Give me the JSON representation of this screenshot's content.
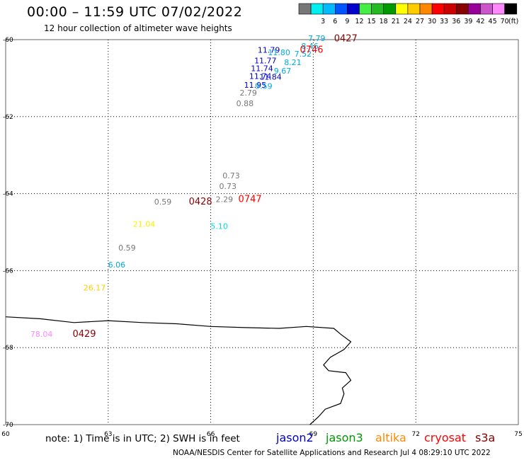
{
  "header": {
    "title": "00:00 – 11:59 UTC 07/02/2022",
    "subtitle": "12 hour collection of altimeter wave heights"
  },
  "color_scale": {
    "unit": "(ft)",
    "bins": [
      {
        "label": "",
        "color": "#777777"
      },
      {
        "label": "3",
        "color": "#00eeee"
      },
      {
        "label": "6",
        "color": "#00bbff"
      },
      {
        "label": "9",
        "color": "#0055ff"
      },
      {
        "label": "12",
        "color": "#0000cc"
      },
      {
        "label": "15",
        "color": "#44ee44"
      },
      {
        "label": "18",
        "color": "#22bb22"
      },
      {
        "label": "21",
        "color": "#009900"
      },
      {
        "label": "24",
        "color": "#ffff00"
      },
      {
        "label": "27",
        "color": "#ffcc00"
      },
      {
        "label": "30",
        "color": "#ff8800"
      },
      {
        "label": "33",
        "color": "#ff0000"
      },
      {
        "label": "36",
        "color": "#cc0000"
      },
      {
        "label": "39",
        "color": "#880000"
      },
      {
        "label": "42",
        "color": "#990099"
      },
      {
        "label": "45",
        "color": "#cc55cc"
      },
      {
        "label": "70",
        "color": "#ff88ff"
      },
      {
        "label": "",
        "color": "#000000"
      }
    ]
  },
  "map": {
    "lon_range": [
      60,
      75
    ],
    "lat_range": [
      -70,
      -60
    ],
    "lon_ticks": [
      {
        "value": 60,
        "label": "60"
      },
      {
        "value": 63,
        "label": "63"
      },
      {
        "value": 66,
        "label": "66"
      },
      {
        "value": 69,
        "label": "69"
      },
      {
        "value": 72,
        "label": "72"
      },
      {
        "value": 75,
        "label": "75"
      }
    ],
    "lat_ticks": [
      {
        "value": -60,
        "label": "-60"
      },
      {
        "value": -62,
        "label": "-62"
      },
      {
        "value": -64,
        "label": "-64"
      },
      {
        "value": -66,
        "label": "-66"
      },
      {
        "value": -68,
        "label": "-68"
      },
      {
        "value": -70,
        "label": "-70"
      }
    ],
    "grid": "dotted",
    "coastline": [
      [
        60,
        -67.2
      ],
      [
        61,
        -67.25
      ],
      [
        62,
        -67.35
      ],
      [
        63,
        -67.3
      ],
      [
        64,
        -67.35
      ],
      [
        65,
        -67.38
      ],
      [
        66,
        -67.45
      ],
      [
        67,
        -67.48
      ],
      [
        68,
        -67.5
      ],
      [
        68.8,
        -67.45
      ],
      [
        69.6,
        -67.5
      ],
      [
        69.8,
        -67.65
      ],
      [
        70.1,
        -67.85
      ],
      [
        69.9,
        -68.05
      ],
      [
        69.5,
        -68.25
      ],
      [
        69.3,
        -68.45
      ],
      [
        69.45,
        -68.6
      ],
      [
        69.95,
        -68.65
      ],
      [
        70.1,
        -68.85
      ],
      [
        69.85,
        -69.05
      ],
      [
        69.9,
        -69.2
      ],
      [
        69.8,
        -69.45
      ],
      [
        69.35,
        -69.6
      ],
      [
        69.15,
        -69.8
      ],
      [
        68.9,
        -70.0
      ]
    ],
    "swh_labels": [
      {
        "text": "7.79",
        "lon": 69.1,
        "lat": -60.04,
        "color": "#00aadd"
      },
      {
        "text": "8.46",
        "lon": 68.9,
        "lat": -60.24,
        "color": "#00aadd"
      },
      {
        "text": "11.79",
        "lon": 67.7,
        "lat": -60.34,
        "color": "#0000cc"
      },
      {
        "text": "11.80",
        "lon": 68.0,
        "lat": -60.4,
        "color": "#00aadd"
      },
      {
        "text": "7.52",
        "lon": 68.7,
        "lat": -60.44,
        "color": "#00aadd"
      },
      {
        "text": "11.77",
        "lon": 67.6,
        "lat": -60.62,
        "color": "#0000cc"
      },
      {
        "text": "8.21",
        "lon": 68.4,
        "lat": -60.66,
        "color": "#00aadd"
      },
      {
        "text": "11.74",
        "lon": 67.5,
        "lat": -60.82,
        "color": "#0000cc"
      },
      {
        "text": "9.67",
        "lon": 68.1,
        "lat": -60.88,
        "color": "#00aadd"
      },
      {
        "text": "11.74",
        "lon": 67.45,
        "lat": -61.02,
        "color": "#0000cc"
      },
      {
        "text": "11.84",
        "lon": 67.75,
        "lat": -61.04,
        "color": "#0000cc"
      },
      {
        "text": "11.95",
        "lon": 67.3,
        "lat": -61.25,
        "color": "#0000cc"
      },
      {
        "text": "9.59",
        "lon": 67.55,
        "lat": -61.28,
        "color": "#00aadd"
      },
      {
        "text": "2.79",
        "lon": 67.1,
        "lat": -61.45,
        "color": "#777777"
      },
      {
        "text": "0.88",
        "lon": 67.0,
        "lat": -61.73,
        "color": "#777777"
      },
      {
        "text": "0.73",
        "lon": 66.6,
        "lat": -63.6,
        "color": "#777777"
      },
      {
        "text": "0.73",
        "lon": 66.5,
        "lat": -63.88,
        "color": "#777777"
      },
      {
        "text": "0.59",
        "lon": 64.6,
        "lat": -64.28,
        "color": "#777777"
      },
      {
        "text": "2.29",
        "lon": 66.4,
        "lat": -64.22,
        "color": "#777777"
      },
      {
        "text": "21.04",
        "lon": 64.05,
        "lat": -64.86,
        "color": "#ffee00"
      },
      {
        "text": "5.10",
        "lon": 66.25,
        "lat": -64.92,
        "color": "#00dddd"
      },
      {
        "text": "0.59",
        "lon": 63.55,
        "lat": -65.48,
        "color": "#777777"
      },
      {
        "text": "6.06",
        "lon": 63.25,
        "lat": -65.92,
        "color": "#00aadd"
      },
      {
        "text": "26.17",
        "lon": 62.6,
        "lat": -66.52,
        "color": "#ffcc00"
      },
      {
        "text": "78.04",
        "lon": 61.05,
        "lat": -67.72,
        "color": "#ff88ff"
      }
    ],
    "pass_times": [
      {
        "text": "0427",
        "lon": 69.95,
        "lat": -60.05,
        "color": "#880000"
      },
      {
        "text": "0746",
        "lon": 68.95,
        "lat": -60.34,
        "color": "#ff0000"
      },
      {
        "text": "0428",
        "lon": 65.7,
        "lat": -64.28,
        "color": "#880000"
      },
      {
        "text": "0747",
        "lon": 67.15,
        "lat": -64.22,
        "color": "#ff0000"
      },
      {
        "text": "0429",
        "lon": 62.3,
        "lat": -67.72,
        "color": "#880000"
      }
    ]
  },
  "footer": {
    "note": "note:  1) Time is in UTC;  2) SWH is in feet",
    "credit": "NOAA/NESDIS Center for Satellite Applications and Research    Jul  4 08:29:10 UTC 2022",
    "satellites": [
      {
        "name": "jason2",
        "color": "#0000cc"
      },
      {
        "name": "jason3",
        "color": "#009900"
      },
      {
        "name": "altika",
        "color": "#ff8800"
      },
      {
        "name": "cryosat",
        "color": "#ff0000"
      },
      {
        "name": "s3a",
        "color": "#880000"
      }
    ]
  }
}
